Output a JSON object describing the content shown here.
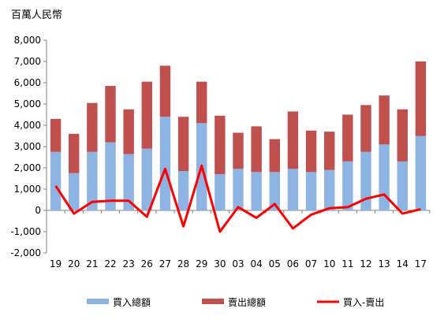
{
  "chart_data": {
    "type": "bar",
    "stacked": true,
    "unit_label": "百萬人民幣",
    "categories": [
      "19",
      "20",
      "21",
      "22",
      "23",
      "26",
      "27",
      "28",
      "29",
      "30",
      "03",
      "04",
      "05",
      "06",
      "07",
      "10",
      "11",
      "12",
      "13",
      "14",
      "17"
    ],
    "ylim": [
      -2000,
      8000
    ],
    "yticks": [
      -2000,
      -1000,
      0,
      1000,
      2000,
      3000,
      4000,
      5000,
      6000,
      7000,
      8000
    ],
    "ytick_labels": [
      "-2,000",
      "-1,000",
      "0",
      "1,000",
      "2,000",
      "3,000",
      "4,000",
      "5,000",
      "6,000",
      "7,000",
      "8,000"
    ],
    "grid": false,
    "legend": "bottom",
    "series": [
      {
        "name": "買入總額",
        "kind": "bar",
        "color": "#8DB4E2",
        "values": [
          2750,
          1750,
          2750,
          3200,
          2650,
          2900,
          4400,
          1850,
          4100,
          1700,
          1950,
          1800,
          1800,
          1950,
          1800,
          1900,
          2300,
          2750,
          3100,
          2300,
          3500
        ]
      },
      {
        "name": "賣出總額",
        "kind": "bar",
        "color": "#C0504D",
        "values": [
          1550,
          1850,
          2300,
          2650,
          2100,
          3150,
          2400,
          2550,
          1950,
          2750,
          1700,
          2150,
          1550,
          2700,
          1950,
          1800,
          2200,
          2200,
          2300,
          2450,
          3500
        ]
      },
      {
        "name": "買入-賣出",
        "kind": "line",
        "color": "#FF0000",
        "values": [
          1150,
          -150,
          400,
          450,
          450,
          -300,
          1950,
          -750,
          2100,
          -1000,
          150,
          -350,
          300,
          -850,
          -200,
          100,
          150,
          550,
          750,
          -150,
          50
        ]
      }
    ]
  }
}
